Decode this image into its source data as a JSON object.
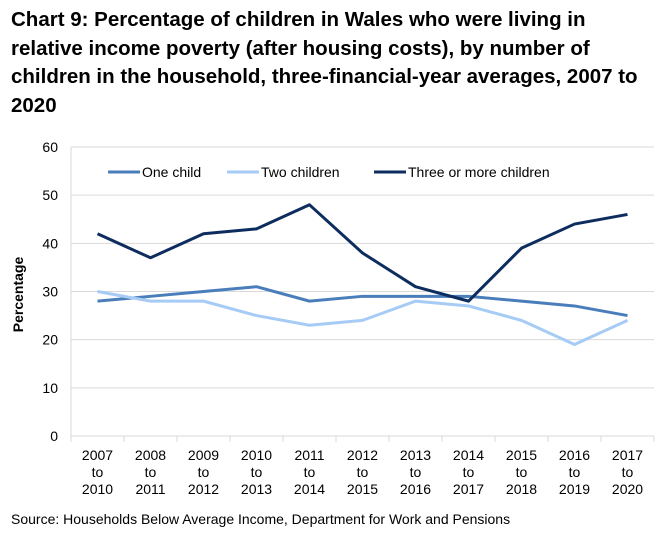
{
  "chart_data": {
    "type": "line",
    "title": "Chart 9: Percentage of children in Wales who were living in relative income poverty (after housing costs), by number of children in the household, three-financial-year averages, 2007 to 2020",
    "xlabel": "",
    "ylabel": "Percentage",
    "ylim": [
      0,
      60
    ],
    "yticks": [
      0,
      10,
      20,
      30,
      40,
      50,
      60
    ],
    "grid": true,
    "legend": "top",
    "categories": [
      [
        "2007",
        "to",
        "2010"
      ],
      [
        "2008",
        "to",
        "2011"
      ],
      [
        "2009",
        "to",
        "2012"
      ],
      [
        "2010",
        "to",
        "2013"
      ],
      [
        "2011",
        "to",
        "2014"
      ],
      [
        "2012",
        "to",
        "2015"
      ],
      [
        "2013",
        "to",
        "2016"
      ],
      [
        "2014",
        "to",
        "2017"
      ],
      [
        "2015",
        "to",
        "2018"
      ],
      [
        "2016",
        "to",
        "2019"
      ],
      [
        "2017",
        "to",
        "2020"
      ]
    ],
    "series": [
      {
        "name": "One child",
        "color": "#4a7ebb",
        "values": [
          28,
          29,
          30,
          31,
          28,
          29,
          29,
          29,
          28,
          27,
          25
        ]
      },
      {
        "name": "Two children",
        "color": "#a6cbf5",
        "values": [
          30,
          28,
          28,
          25,
          23,
          24,
          28,
          27,
          24,
          19,
          24
        ]
      },
      {
        "name": "Three or more children",
        "color": "#0e2d5f",
        "values": [
          42,
          37,
          42,
          43,
          48,
          38,
          31,
          28,
          39,
          44,
          46
        ]
      }
    ],
    "source": "Source: Households Below Average Income, Department for Work and Pensions"
  }
}
